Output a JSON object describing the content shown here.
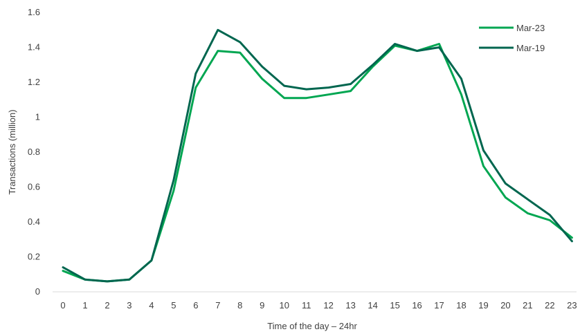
{
  "chart_data": {
    "type": "line",
    "xlabel": "Time of the day – 24hr",
    "ylabel": "Transactions (million)",
    "x": [
      0,
      1,
      2,
      3,
      4,
      5,
      6,
      7,
      8,
      9,
      10,
      11,
      12,
      13,
      14,
      15,
      16,
      17,
      18,
      19,
      20,
      21,
      22,
      23
    ],
    "ylim": [
      0,
      1.6
    ],
    "y_ticks": [
      "0",
      "0.2",
      "0.4",
      "0.6",
      "0.8",
      "1",
      "1.2",
      "1.4",
      "1.6"
    ],
    "grid": false,
    "legend_position": "top-right",
    "series": [
      {
        "name": "Mar-23",
        "color": "#00A651",
        "values": [
          0.12,
          0.07,
          0.06,
          0.07,
          0.18,
          0.58,
          1.17,
          1.38,
          1.37,
          1.22,
          1.11,
          1.11,
          1.13,
          1.15,
          1.29,
          1.41,
          1.38,
          1.42,
          1.13,
          0.72,
          0.54,
          0.45,
          0.41,
          0.31
        ]
      },
      {
        "name": "Mar-19",
        "color": "#00664F",
        "values": [
          0.14,
          0.07,
          0.06,
          0.07,
          0.18,
          0.64,
          1.25,
          1.5,
          1.43,
          1.29,
          1.18,
          1.16,
          1.17,
          1.19,
          1.3,
          1.42,
          1.38,
          1.4,
          1.22,
          0.81,
          0.62,
          0.53,
          0.44,
          0.29
        ]
      }
    ]
  }
}
